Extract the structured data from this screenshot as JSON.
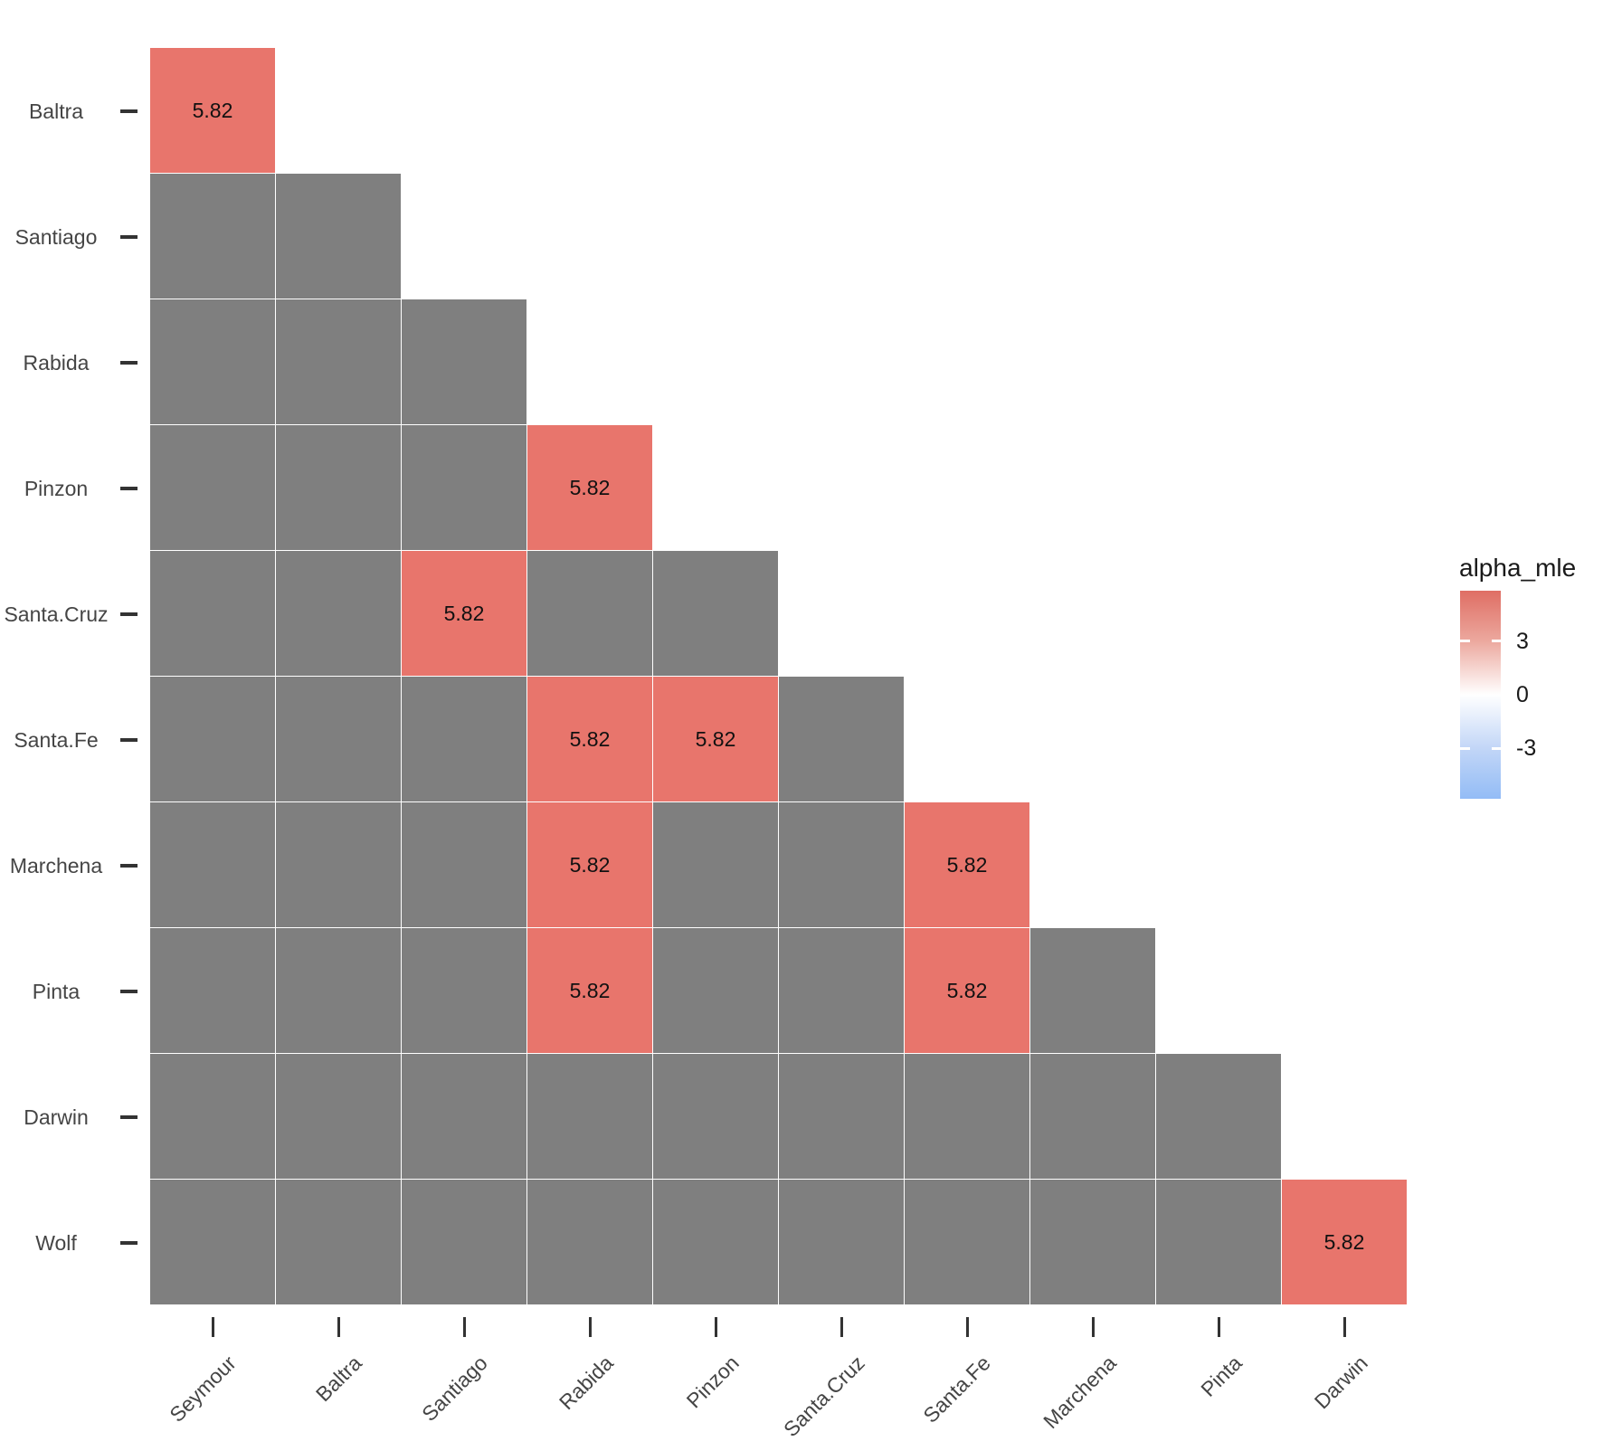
{
  "chart_data": {
    "type": "heatmap",
    "legend_title": "alpha_mle",
    "x_categories": [
      "Seymour",
      "Baltra",
      "Santiago",
      "Rabida",
      "Pinzon",
      "Santa.Cruz",
      "Santa.Fe",
      "Marchena",
      "Pinta",
      "Darwin"
    ],
    "y_categories": [
      "Baltra",
      "Santiago",
      "Rabida",
      "Pinzon",
      "Santa.Cruz",
      "Santa.Fe",
      "Marchena",
      "Pinta",
      "Darwin",
      "Wolf"
    ],
    "matrix": [
      [
        5.82
      ],
      [
        null,
        null
      ],
      [
        null,
        null,
        null
      ],
      [
        null,
        null,
        null,
        5.82
      ],
      [
        null,
        null,
        5.82,
        null,
        null
      ],
      [
        null,
        null,
        null,
        5.82,
        5.82,
        null
      ],
      [
        null,
        null,
        null,
        5.82,
        null,
        null,
        5.82
      ],
      [
        null,
        null,
        null,
        5.82,
        null,
        null,
        5.82,
        null
      ],
      [
        null,
        null,
        null,
        null,
        null,
        null,
        null,
        null,
        null
      ],
      [
        null,
        null,
        null,
        null,
        null,
        null,
        null,
        null,
        null,
        5.82
      ]
    ],
    "cell_value_label": "5.82",
    "na_color": "#7F7F7F",
    "value_color": "#E8756C",
    "grid_off": true,
    "legend_position": "right",
    "colorbar": {
      "domain": [
        -5.82,
        5.82
      ],
      "ticks": [
        3,
        0,
        -3
      ],
      "gradient_stops": [
        {
          "pos": 0,
          "color": "#DF6E64"
        },
        {
          "pos": 0.242,
          "color": "#ECA89E"
        },
        {
          "pos": 0.5,
          "color": "#FFFFFF"
        },
        {
          "pos": 0.758,
          "color": "#C2D6F7"
        },
        {
          "pos": 1,
          "color": "#93BCF6"
        }
      ]
    }
  }
}
